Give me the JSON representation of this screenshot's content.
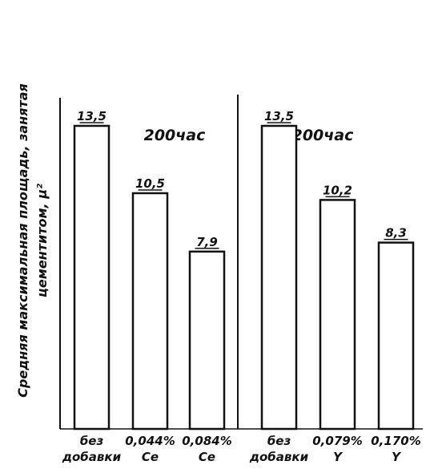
{
  "chart_data": {
    "type": "bar",
    "ylabel_lines": [
      "Средняя максимальная площадь, занятая",
      "цементитом, μ²"
    ],
    "ylim": [
      0,
      18
    ],
    "grid": false,
    "colors": {
      "ink": "#111111",
      "bar_fill": "#ffffff"
    },
    "panels": [
      {
        "title": "200час",
        "categories": [
          [
            "без",
            "добавки"
          ],
          [
            "0,044%",
            "Ce"
          ],
          [
            "0,084%",
            "Ce"
          ]
        ],
        "values": [
          13.5,
          10.5,
          7.9
        ],
        "value_labels": [
          "13,5",
          "10,5",
          "7,9"
        ]
      },
      {
        "title": "200час",
        "categories": [
          [
            "без",
            "добавки"
          ],
          [
            "0,079%",
            "Y"
          ],
          [
            "0,170%",
            "Y"
          ]
        ],
        "values": [
          13.5,
          10.2,
          8.3
        ],
        "value_labels": [
          "13,5",
          "10,2",
          "8,3"
        ]
      }
    ]
  }
}
